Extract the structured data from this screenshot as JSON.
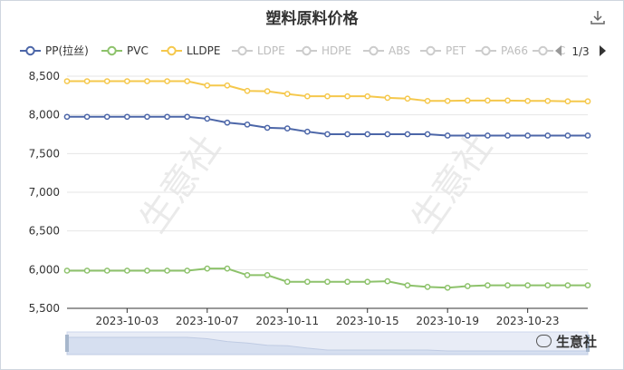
{
  "header": {
    "title": "塑料原料价格",
    "download_icon": "download-icon"
  },
  "legend": {
    "items": [
      {
        "label": "PP(拉丝)",
        "color": "#4c66a8",
        "active": true
      },
      {
        "label": "PVC",
        "color": "#8dc26b",
        "active": true
      },
      {
        "label": "LLDPE",
        "color": "#f5c84c",
        "active": true
      },
      {
        "label": "LDPE",
        "color": "#cccccc",
        "active": false
      },
      {
        "label": "HDPE",
        "color": "#cccccc",
        "active": false
      },
      {
        "label": "ABS",
        "color": "#cccccc",
        "active": false
      },
      {
        "label": "PET",
        "color": "#cccccc",
        "active": false
      },
      {
        "label": "PA66",
        "color": "#cccccc",
        "active": false
      },
      {
        "label": "C",
        "color": "#cccccc",
        "active": false
      }
    ],
    "page": "1/3",
    "prev_icon": "triangle-left-icon",
    "next_icon": "triangle-right-icon"
  },
  "watermark": "生意社",
  "logo": {
    "text": "生意社",
    "icon": "chat-bubble-icon"
  },
  "chart_data": {
    "type": "line",
    "title": "塑料原料价格",
    "xlabel": "",
    "ylabel": "",
    "ylim": [
      5500,
      8500
    ],
    "yticks": [
      "8,500",
      "8,000",
      "7,500",
      "7,000",
      "6,500",
      "6,000",
      "5,500"
    ],
    "xtick_labels": [
      "2023-10-03",
      "2023-10-07",
      "2023-10-11",
      "2023-10-15",
      "2023-10-19",
      "2023-10-23"
    ],
    "grid": true,
    "legend_position": "top",
    "x": [
      "2023-09-30",
      "2023-10-01",
      "2023-10-02",
      "2023-10-03",
      "2023-10-04",
      "2023-10-05",
      "2023-10-06",
      "2023-10-07",
      "2023-10-08",
      "2023-10-09",
      "2023-10-10",
      "2023-10-11",
      "2023-10-12",
      "2023-10-13",
      "2023-10-14",
      "2023-10-15",
      "2023-10-16",
      "2023-10-17",
      "2023-10-18",
      "2023-10-19",
      "2023-10-20",
      "2023-10-21",
      "2023-10-22",
      "2023-10-23",
      "2023-10-24",
      "2023-10-25",
      "2023-10-26"
    ],
    "series": [
      {
        "name": "PP(拉丝)",
        "color": "#4c66a8",
        "values": [
          7975,
          7975,
          7975,
          7975,
          7975,
          7975,
          7975,
          7950,
          7900,
          7875,
          7833,
          7825,
          7783,
          7750,
          7750,
          7750,
          7750,
          7750,
          7750,
          7733,
          7733,
          7733,
          7733,
          7733,
          7733,
          7733,
          7733
        ]
      },
      {
        "name": "PVC",
        "color": "#8dc26b",
        "values": [
          5987,
          5987,
          5987,
          5987,
          5987,
          5987,
          5987,
          6014,
          6014,
          5929,
          5929,
          5843,
          5843,
          5843,
          5843,
          5843,
          5850,
          5797,
          5777,
          5766,
          5787,
          5797,
          5797,
          5797,
          5797,
          5797,
          5797
        ]
      },
      {
        "name": "LLDPE",
        "color": "#f5c84c",
        "values": [
          8435,
          8435,
          8435,
          8435,
          8435,
          8435,
          8435,
          8380,
          8380,
          8310,
          8305,
          8270,
          8240,
          8240,
          8240,
          8240,
          8220,
          8210,
          8180,
          8180,
          8185,
          8185,
          8185,
          8180,
          8180,
          8175,
          8175
        ]
      }
    ]
  }
}
